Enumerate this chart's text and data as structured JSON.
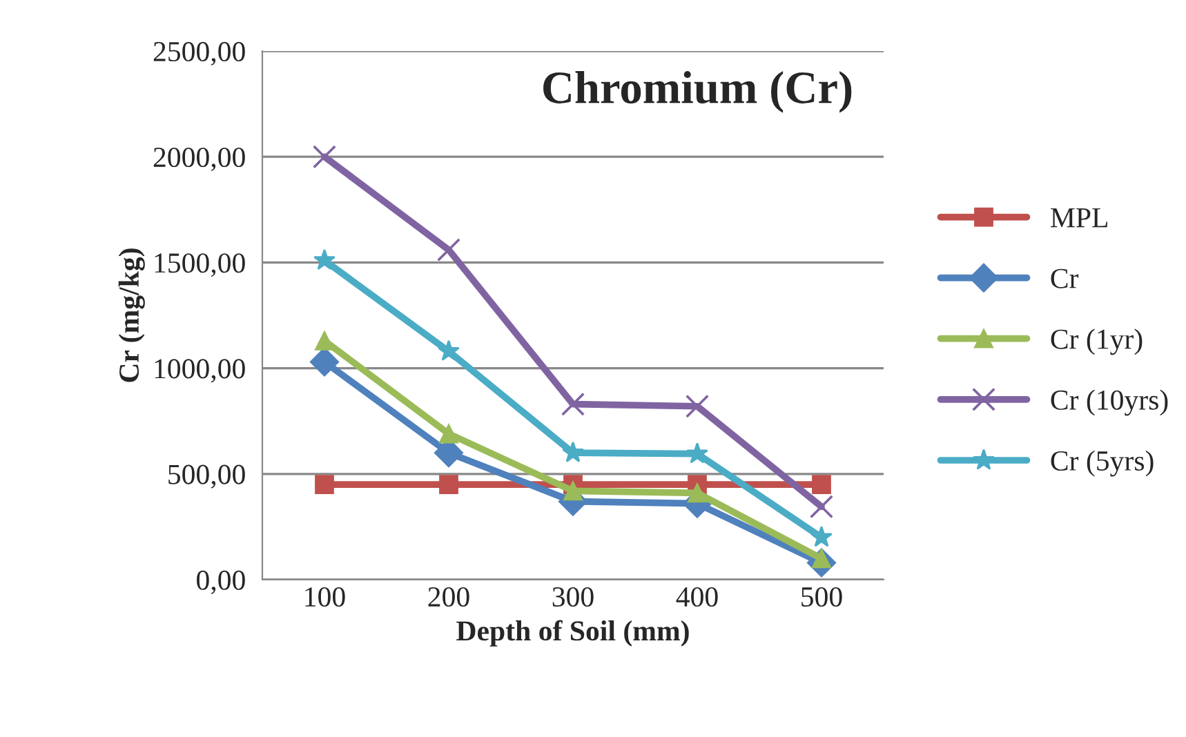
{
  "chart_data": {
    "type": "line",
    "title": "Chromium (Cr)",
    "xlabel": "Depth of Soil (mm)",
    "ylabel": "Cr (mg/kg)",
    "categories": [
      "100",
      "200",
      "300",
      "400",
      "500"
    ],
    "series": [
      {
        "name": "MPL",
        "color": "#c0504d",
        "marker": "square",
        "values": [
          450,
          450,
          450,
          450,
          450
        ]
      },
      {
        "name": "Cr",
        "color": "#4f81bd",
        "marker": "diamond",
        "values": [
          1030,
          600,
          370,
          360,
          80
        ]
      },
      {
        "name": "Cr (1yr)",
        "color": "#9bbb59",
        "marker": "triangle",
        "values": [
          1130,
          690,
          420,
          410,
          100
        ]
      },
      {
        "name": "Cr (10yrs)",
        "color": "#8064a2",
        "marker": "cross",
        "values": [
          2000,
          1560,
          830,
          820,
          345
        ]
      },
      {
        "name": "Cr (5yrs)",
        "color": "#4bacc6",
        "marker": "star",
        "values": [
          1510,
          1080,
          600,
          595,
          200
        ]
      }
    ],
    "ylim": [
      0,
      2500
    ],
    "yticks": [
      {
        "value": 0,
        "label": "0,00"
      },
      {
        "value": 500,
        "label": "500,00"
      },
      {
        "value": 1000,
        "label": "1000,00"
      },
      {
        "value": 1500,
        "label": "1500,00"
      },
      {
        "value": 2000,
        "label": "2000,00"
      },
      {
        "value": 2500,
        "label": "2500,00"
      }
    ],
    "grid": "y",
    "legend": "right"
  }
}
